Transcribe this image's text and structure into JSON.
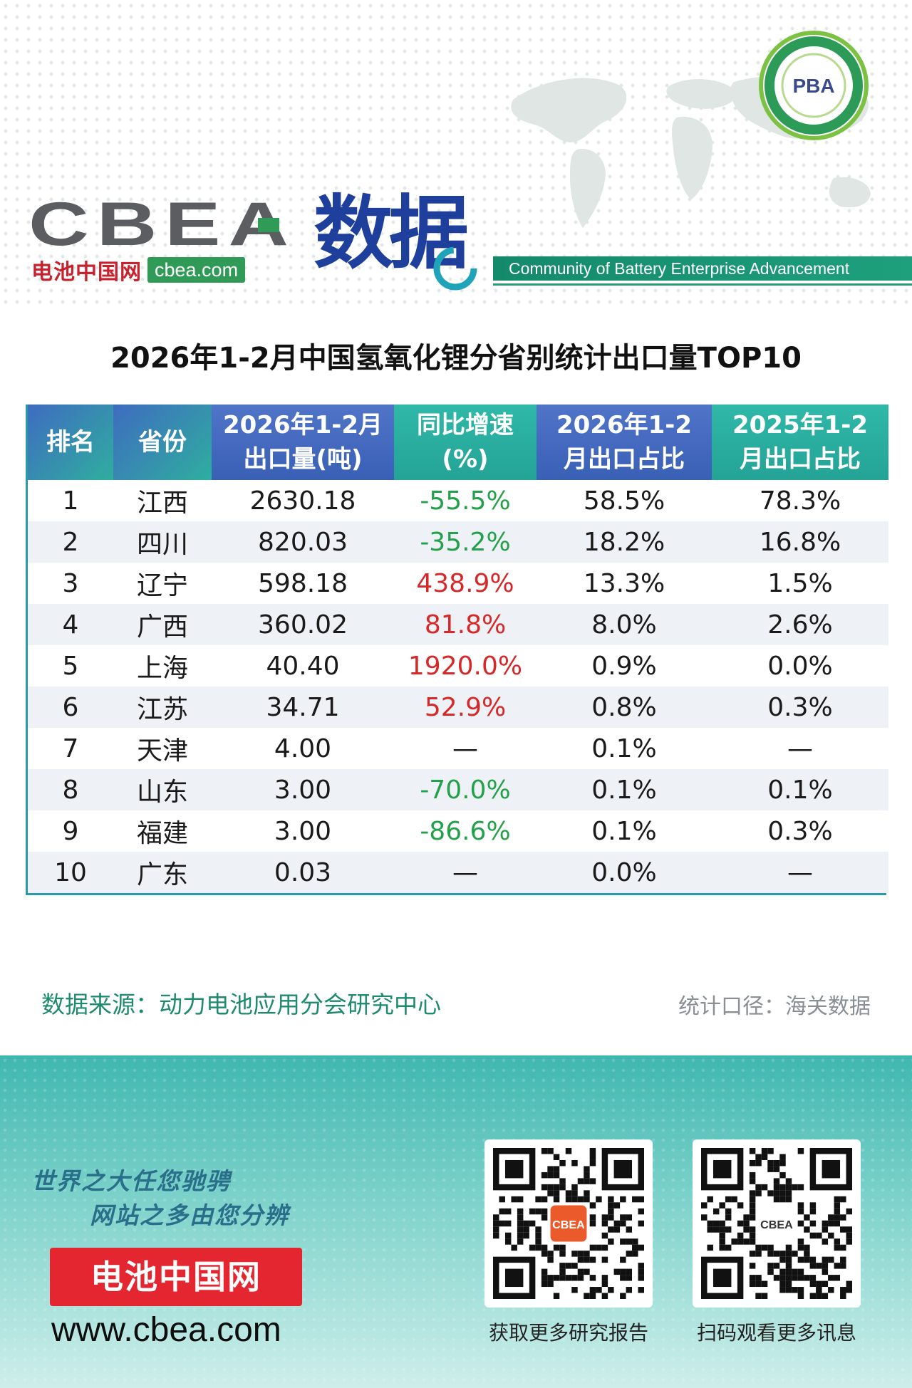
{
  "brand": {
    "logo_text": "CBEA",
    "cn_name": "电池中国网",
    "domain": "cbea.com",
    "section_title": "数据",
    "community_tagline": "Community of Battery Enterprise Advancement",
    "seal_text": "PBA",
    "colors": {
      "teal": "#1ea07c",
      "blue": "#1f3f9c",
      "red": "#c6232f"
    }
  },
  "title": "2026年1-2月中国氢氧化锂分省别统计出口量TOP10",
  "table": {
    "headers": [
      "排名",
      "省份",
      "2026年1-2月出口量(吨)",
      "同比增速(%)",
      "2026年1-2月出口占比",
      "2025年1-2月出口占比"
    ],
    "header_lines": [
      [
        "排名"
      ],
      [
        "省份"
      ],
      [
        "2026年1-2月",
        "出口量(吨)"
      ],
      [
        "同比增速",
        "(%)"
      ],
      [
        "2026年1-2",
        "月出口占比"
      ],
      [
        "2025年1-2",
        "月出口占比"
      ]
    ],
    "rows": [
      {
        "rank": "1",
        "province": "江西",
        "volume": "2630.18",
        "yoy": "-55.5%",
        "share_2026": "58.5%",
        "share_2025": "78.3%"
      },
      {
        "rank": "2",
        "province": "四川",
        "volume": "820.03",
        "yoy": "-35.2%",
        "share_2026": "18.2%",
        "share_2025": "16.8%"
      },
      {
        "rank": "3",
        "province": "辽宁",
        "volume": "598.18",
        "yoy": "438.9%",
        "share_2026": "13.3%",
        "share_2025": "1.5%"
      },
      {
        "rank": "4",
        "province": "广西",
        "volume": "360.02",
        "yoy": "81.8%",
        "share_2026": "8.0%",
        "share_2025": "2.6%"
      },
      {
        "rank": "5",
        "province": "上海",
        "volume": "40.40",
        "yoy": "1920.0%",
        "share_2026": "0.9%",
        "share_2025": "0.0%"
      },
      {
        "rank": "6",
        "province": "江苏",
        "volume": "34.71",
        "yoy": "52.9%",
        "share_2026": "0.8%",
        "share_2025": "0.3%"
      },
      {
        "rank": "7",
        "province": "天津",
        "volume": "4.00",
        "yoy": "—",
        "share_2026": "0.1%",
        "share_2025": "—"
      },
      {
        "rank": "8",
        "province": "山东",
        "volume": "3.00",
        "yoy": "-70.0%",
        "share_2026": "0.1%",
        "share_2025": "0.1%"
      },
      {
        "rank": "9",
        "province": "福建",
        "volume": "3.00",
        "yoy": "-86.6%",
        "share_2026": "0.1%",
        "share_2025": "0.3%"
      },
      {
        "rank": "10",
        "province": "广东",
        "volume": "0.03",
        "yoy": "—",
        "share_2026": "0.0%",
        "share_2025": "—"
      }
    ],
    "colors": {
      "negative": "#23a04a",
      "positive": "#d62828"
    }
  },
  "source": "数据来源：动力电池应用分会研究中心",
  "basis": "统计口径：海关数据",
  "footer": {
    "slogan_1": "世界之大任您驰骋",
    "slogan_2": "网站之多由您分辨",
    "badge": "电池中国网",
    "website": "www.cbea.com",
    "qr_left_caption": "获取更多研究报告",
    "qr_right_caption": "扫码观看更多讯息",
    "qr_center_label": "CBEA"
  }
}
